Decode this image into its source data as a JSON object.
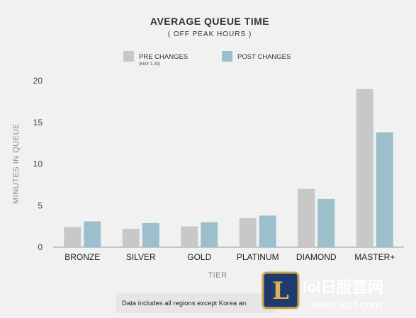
{
  "chart_data": {
    "type": "bar",
    "title": "AVERAGE QUEUE TIME",
    "subtitle": "( OFF PEAK HOURS )",
    "xlabel": "TIER",
    "ylabel": "MINUTES IN QUEUE",
    "ylim": [
      0,
      20
    ],
    "yticks": [
      "0",
      "5",
      "10",
      "15",
      "20"
    ],
    "categories": [
      "BRONZE",
      "SILVER",
      "GOLD",
      "PLATINUM",
      "DIAMOND",
      "MASTER+"
    ],
    "series": [
      {
        "name": "PRE CHANGES",
        "note": "(MAY 1-30)",
        "color": "#c8c8c8",
        "values": [
          2.4,
          2.2,
          2.5,
          3.5,
          7.0,
          19.0
        ]
      },
      {
        "name": "POST CHANGES",
        "color": "#9cbfcc",
        "values": [
          3.1,
          2.9,
          3.0,
          3.8,
          5.8,
          13.8
        ]
      }
    ],
    "legend_position": "top-center",
    "grid": false,
    "footnote": "Data includes all regions except Korea an"
  },
  "watermark": {
    "text": "lol日服官网",
    "url": "www.lolrf.com",
    "logo_letter": "L"
  }
}
